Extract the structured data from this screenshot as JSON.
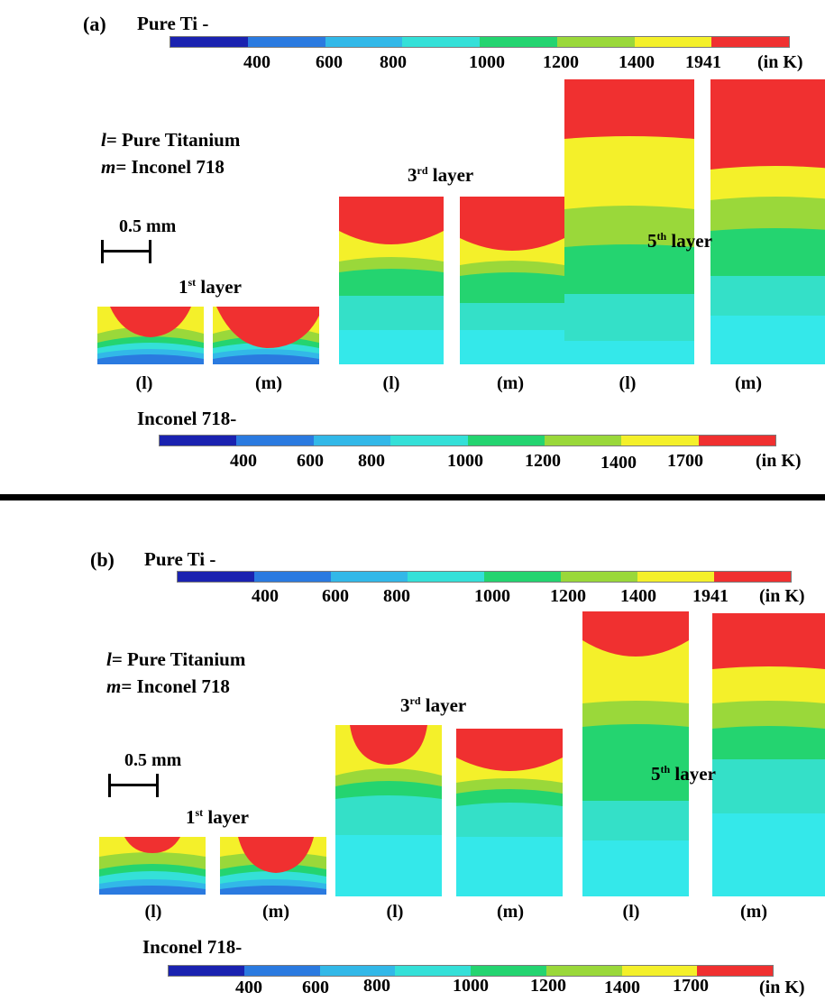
{
  "temperature_palette": [
    "#1a22b0",
    "#2a7ae0",
    "#32b8e8",
    "#34e0d8",
    "#24d470",
    "#9ad83a",
    "#f4f02a",
    "#f03030"
  ],
  "labels": {
    "pure_ti_bar_title": "Pure Ti -",
    "inconel_bar_title": "Inconel 718-",
    "unit": "(in K)",
    "pure_ti_ticks": [
      "400",
      "600",
      "800",
      "1000",
      "1200",
      "1400",
      "1941"
    ],
    "inconel_ticks": [
      "400",
      "600",
      "800",
      "1000",
      "1200",
      "1400",
      "1700"
    ],
    "legend_l_key": "l",
    "legend_l_text": "= Pure Titanium",
    "legend_m_key": "m",
    "legend_m_text": "= Inconel 718",
    "scale_bar": "0.5 mm",
    "layer_1": "1",
    "layer_1_sup": "st",
    "layer_3": "3",
    "layer_3_sup": "rd",
    "layer_5": "5",
    "layer_5_sup": "th",
    "layer_word": " layer",
    "sub_l": "(l)",
    "sub_m": "(m)"
  },
  "panels": [
    {
      "id": "a",
      "label": "(a)",
      "samples": [
        {
          "layer": "1st",
          "material": "l",
          "bands_top_to_bottom": [
            "red",
            "yellow",
            "light-green",
            "green",
            "cyan-green",
            "cyan",
            "blue"
          ]
        },
        {
          "layer": "1st",
          "material": "m",
          "bands_top_to_bottom": [
            "red",
            "yellow",
            "light-green",
            "green",
            "cyan-green",
            "cyan",
            "blue"
          ]
        },
        {
          "layer": "3rd",
          "material": "l",
          "bands_top_to_bottom": [
            "red",
            "yellow",
            "light-green",
            "green",
            "cyan-green",
            "cyan"
          ]
        },
        {
          "layer": "3rd",
          "material": "m",
          "bands_top_to_bottom": [
            "red",
            "yellow",
            "light-green",
            "green",
            "cyan-green",
            "cyan"
          ]
        },
        {
          "layer": "5th",
          "material": "l",
          "bands_top_to_bottom": [
            "red",
            "yellow",
            "light-green",
            "green",
            "cyan-green",
            "cyan"
          ]
        },
        {
          "layer": "5th",
          "material": "m",
          "bands_top_to_bottom": [
            "red",
            "yellow",
            "light-green",
            "green",
            "cyan-green",
            "cyan"
          ]
        }
      ]
    },
    {
      "id": "b",
      "label": "(b)",
      "samples": [
        {
          "layer": "1st",
          "material": "l",
          "bands_top_to_bottom": [
            "red",
            "yellow",
            "light-green",
            "green",
            "cyan-green",
            "cyan",
            "blue"
          ]
        },
        {
          "layer": "1st",
          "material": "m",
          "bands_top_to_bottom": [
            "red",
            "yellow",
            "light-green",
            "green",
            "cyan-green",
            "cyan",
            "blue"
          ]
        },
        {
          "layer": "3rd",
          "material": "l",
          "bands_top_to_bottom": [
            "red",
            "yellow",
            "light-green",
            "green",
            "cyan-green",
            "cyan"
          ]
        },
        {
          "layer": "3rd",
          "material": "m",
          "bands_top_to_bottom": [
            "red",
            "yellow",
            "light-green",
            "green",
            "cyan-green",
            "cyan"
          ]
        },
        {
          "layer": "5th",
          "material": "l",
          "bands_top_to_bottom": [
            "red",
            "yellow",
            "light-green",
            "green",
            "cyan-green",
            "cyan"
          ]
        },
        {
          "layer": "5th",
          "material": "m",
          "bands_top_to_bottom": [
            "red",
            "yellow",
            "light-green",
            "green",
            "cyan-green",
            "cyan"
          ]
        }
      ]
    }
  ]
}
